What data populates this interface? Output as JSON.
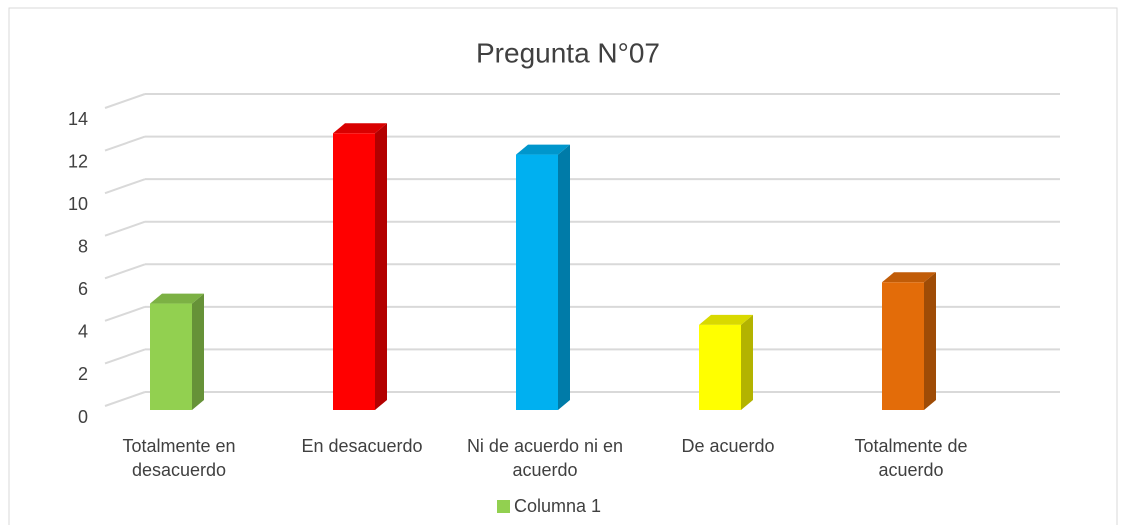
{
  "chart_data": {
    "type": "bar3d",
    "title": "Pregunta N°07",
    "categories": [
      "Totalmente en desacuerdo",
      "En desacuerdo",
      "Ni de acuerdo ni en acuerdo",
      "De acuerdo",
      "Totalmente de acuerdo"
    ],
    "series": [
      {
        "name": "Columna 1",
        "color": "#92d050",
        "values": [
          5,
          13,
          12,
          4,
          6
        ]
      }
    ],
    "colors": [
      "#92d050",
      "#ff0000",
      "#00b0f0",
      "#ffff00",
      "#e36c09"
    ],
    "ylim": [
      0,
      14
    ],
    "yticks": [
      0,
      2,
      4,
      6,
      8,
      10,
      12,
      14
    ],
    "grid": true,
    "legend": "bottom"
  }
}
